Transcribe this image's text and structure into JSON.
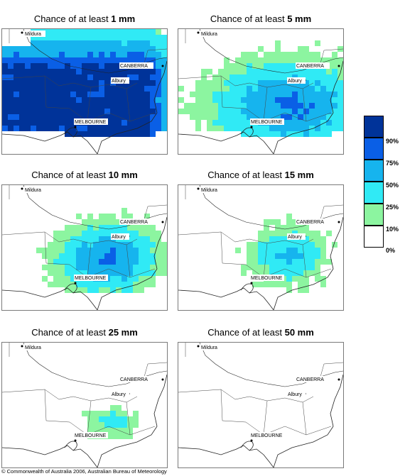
{
  "panels": [
    {
      "prefix": "Chance of at least ",
      "amount": "1 mm",
      "level": 1
    },
    {
      "prefix": "Chance of at least ",
      "amount": "5 mm",
      "level": 2
    },
    {
      "prefix": "Chance of at least ",
      "amount": "10 mm",
      "level": 3
    },
    {
      "prefix": "Chance of at least ",
      "amount": "15 mm",
      "level": 4
    },
    {
      "prefix": "Chance of at least ",
      "amount": "25 mm",
      "level": 5
    },
    {
      "prefix": "Chance of at least ",
      "amount": "50 mm",
      "level": 6
    }
  ],
  "cities": {
    "mildura": "Mildura",
    "canberra": "CANBERRA",
    "albury": "Albury",
    "melbourne": "MELBOURNE"
  },
  "legend": {
    "labels": [
      "90%",
      "75%",
      "50%",
      "25%",
      "10%",
      "0%"
    ],
    "colors": [
      "#003399",
      "#0a5fe6",
      "#16b4ee",
      "#30eaf5",
      "#8cf5a0",
      "#ffffff"
    ]
  },
  "copyright": "© Commonwealth of Australia 2006, Australian Bureau of Meteorology"
}
